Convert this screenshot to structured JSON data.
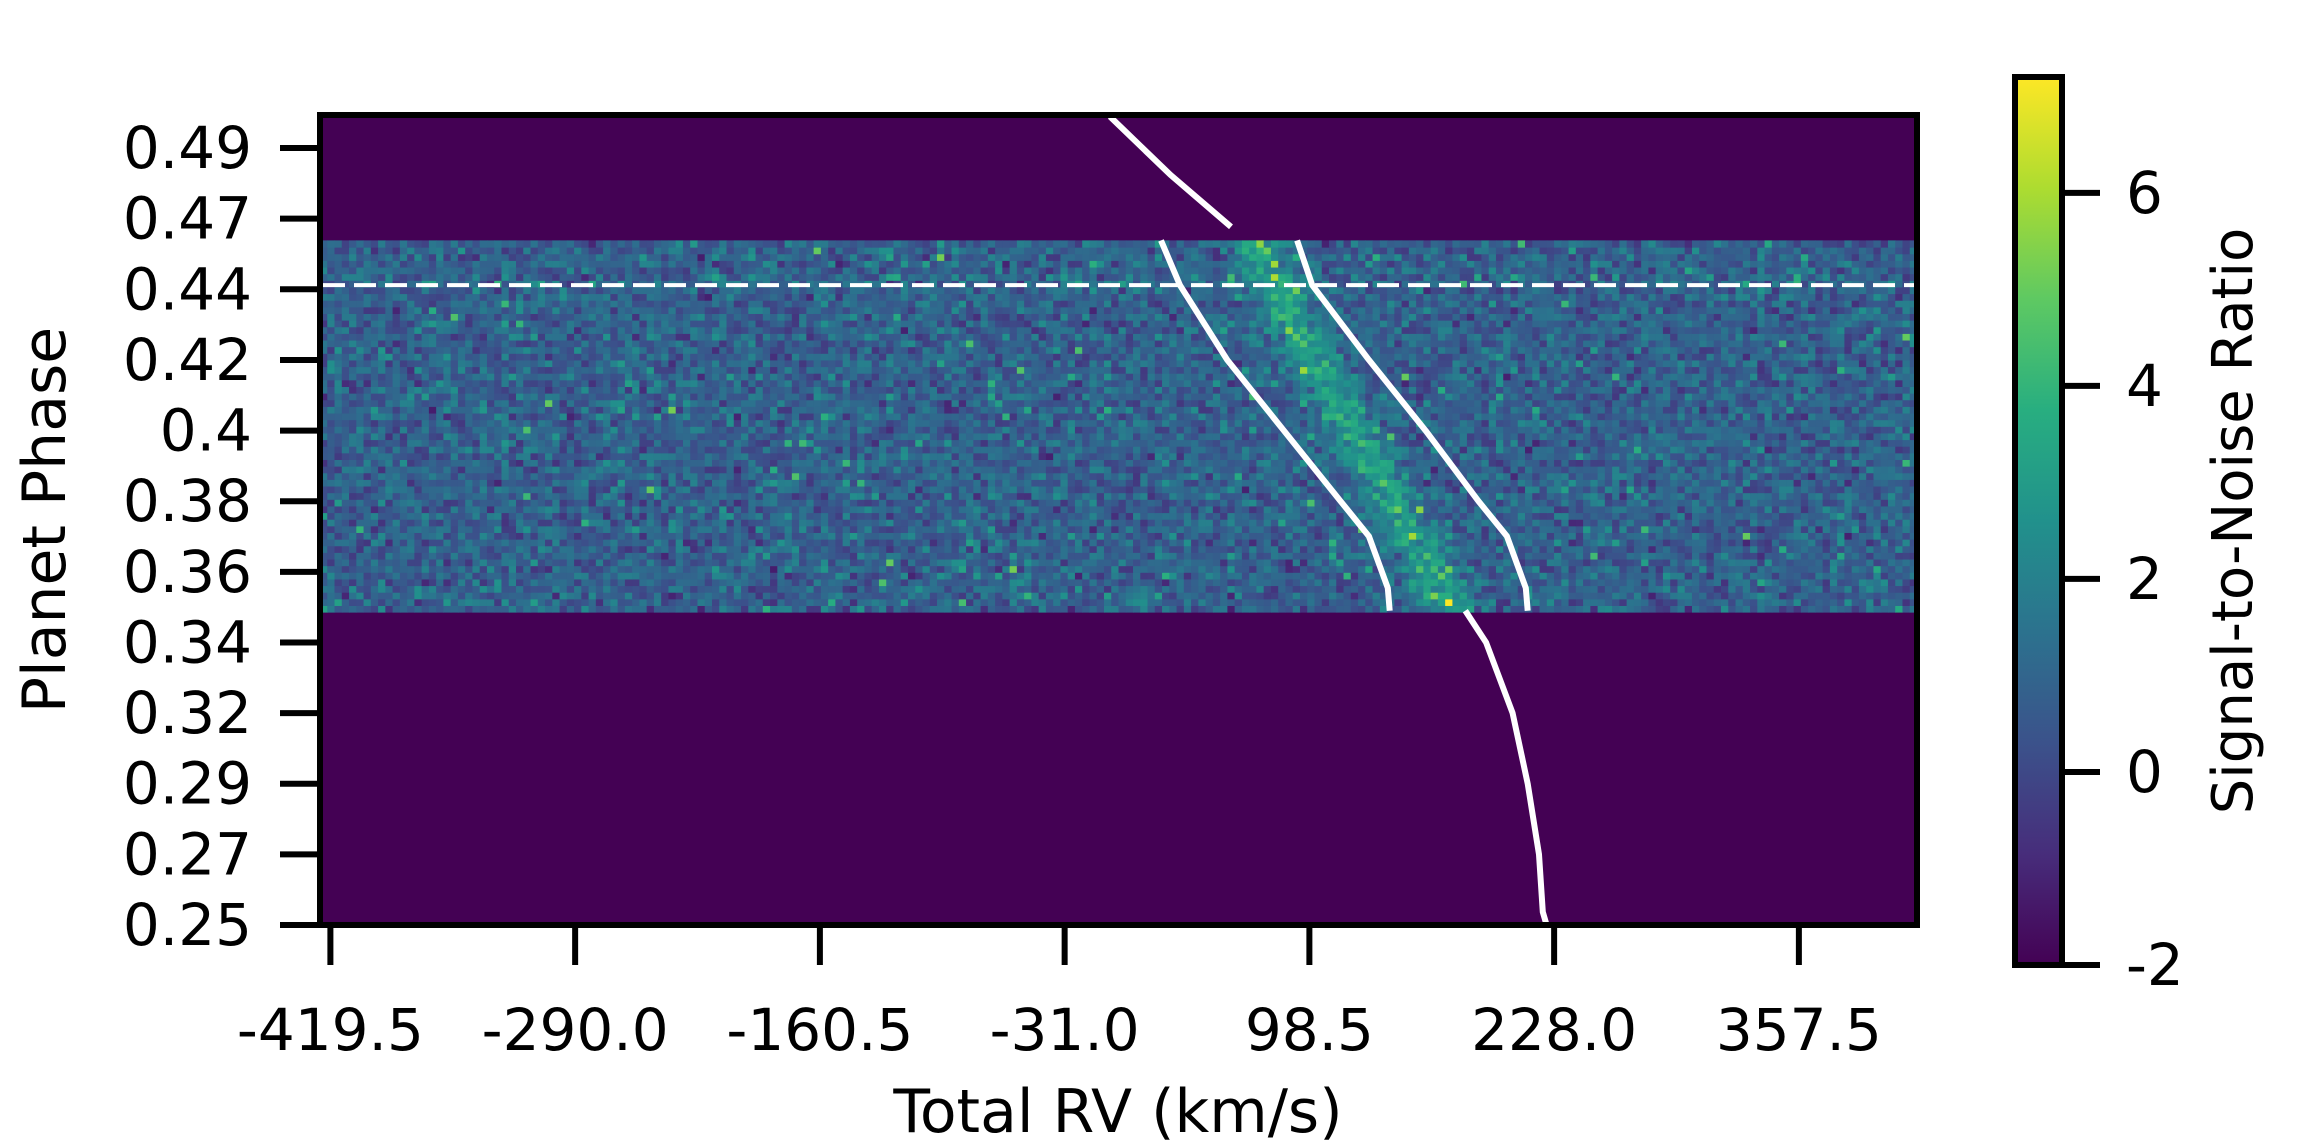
{
  "chart_data": {
    "type": "heatmap",
    "title": "",
    "xlabel": "Total RV (km/s)",
    "ylabel": "Planet Phase",
    "colorbar_label": "Signal-to-Noise Ratio",
    "xlim": [
      -425,
      420
    ],
    "ylim": [
      0.25,
      0.5
    ],
    "x_ticks": [
      {
        "value": -419.5,
        "label": "-419.5"
      },
      {
        "value": -290.0,
        "label": "-290.0"
      },
      {
        "value": -160.5,
        "label": "-160.5"
      },
      {
        "value": -31.0,
        "label": "-31.0"
      },
      {
        "value": 98.5,
        "label": "98.5"
      },
      {
        "value": 228.0,
        "label": "228.0"
      },
      {
        "value": 357.5,
        "label": "357.5"
      }
    ],
    "y_ticks": [
      {
        "value": 0.25,
        "label": "0.25"
      },
      {
        "value": 0.2718,
        "label": "0.27"
      },
      {
        "value": 0.2936,
        "label": "0.29"
      },
      {
        "value": 0.3154,
        "label": "0.32"
      },
      {
        "value": 0.3372,
        "label": "0.34"
      },
      {
        "value": 0.359,
        "label": "0.36"
      },
      {
        "value": 0.3808,
        "label": "0.38"
      },
      {
        "value": 0.4026,
        "label": "0.4"
      },
      {
        "value": 0.4244,
        "label": "0.42"
      },
      {
        "value": 0.4462,
        "label": "0.44"
      },
      {
        "value": 0.468,
        "label": "0.47"
      },
      {
        "value": 0.4898,
        "label": "0.49"
      }
    ],
    "colorbar": {
      "colormap": "viridis",
      "range": [
        -2,
        7.2
      ],
      "ticks": [
        {
          "value": -2,
          "label": "-2"
        },
        {
          "value": 0,
          "label": "0"
        },
        {
          "value": 2,
          "label": "2"
        },
        {
          "value": 4,
          "label": "4"
        },
        {
          "value": 6,
          "label": "6"
        }
      ]
    },
    "data_band": {
      "phase_min": 0.3466,
      "phase_max": 0.4613,
      "background_snr": -2
    },
    "signal": {
      "rv_at_phase_0.355": 165,
      "rv_at_phase_0.455": 72,
      "peak_snr": 6
    },
    "dashed_line": {
      "phase": 0.4475,
      "color": "#ffffff"
    },
    "model_curves": [
      {
        "points": [
          [
            -7,
            0.4995
          ],
          [
            25,
            0.4815
          ],
          [
            57,
            0.4655
          ]
        ]
      },
      {
        "points": [
          [
            20,
            0.4613
          ],
          [
            30,
            0.4475
          ],
          [
            55,
            0.4244
          ],
          [
            85,
            0.4026
          ],
          [
            115,
            0.3808
          ],
          [
            130,
            0.37
          ],
          [
            140,
            0.354
          ],
          [
            141,
            0.347
          ]
        ]
      },
      {
        "points": [
          [
            92,
            0.4613
          ],
          [
            100,
            0.4475
          ],
          [
            130,
            0.4244
          ],
          [
            160,
            0.4026
          ],
          [
            188,
            0.3808
          ],
          [
            203,
            0.37
          ],
          [
            213,
            0.354
          ],
          [
            214,
            0.347
          ]
        ]
      },
      {
        "points": [
          [
            181,
            0.347
          ],
          [
            192,
            0.3372
          ],
          [
            206,
            0.3154
          ],
          [
            214,
            0.2936
          ],
          [
            220,
            0.2718
          ],
          [
            222,
            0.254
          ],
          [
            224,
            0.25
          ]
        ]
      }
    ]
  }
}
